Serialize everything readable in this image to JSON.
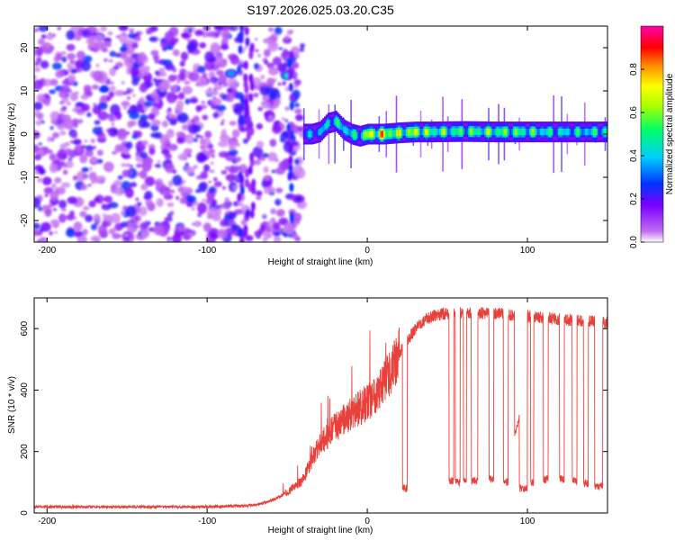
{
  "figure": {
    "title": "S197.2026.025.03.20.C35"
  },
  "chart_data": [
    {
      "type": "heatmap",
      "xlabel": "Height of straight line (km)",
      "ylabel": "Frequency (Hz)",
      "xlim": [
        -208,
        150
      ],
      "ylim": [
        -25,
        25
      ],
      "x_ticks": [
        -200,
        -100,
        0,
        100
      ],
      "y_ticks": [
        -20,
        -10,
        0,
        10,
        20
      ],
      "colorbar": {
        "label": "Normalized spectral amplitude",
        "range": [
          0,
          1
        ],
        "ticks": [
          "0.0",
          "0.2",
          "0.4",
          "0.6",
          "0.8"
        ],
        "colors": [
          "#ffffff",
          "#c26df0",
          "#7a00ff",
          "#0033ff",
          "#00ccff",
          "#00ff66",
          "#aaff00",
          "#ffff00",
          "#ff8800",
          "#ff0000",
          "#ff00aa"
        ]
      },
      "noise_region_x": [
        -208,
        -40
      ],
      "gap_x": [
        -75,
        -70
      ],
      "tone": {
        "x": [
          -40,
          -35,
          -30,
          -25,
          -20,
          -15,
          -10,
          -5,
          0,
          10,
          20,
          30,
          40,
          60,
          80,
          100,
          120,
          150
        ],
        "frequency": [
          0,
          0,
          0.5,
          2.5,
          3,
          1,
          0,
          -0.5,
          0,
          0,
          0.3,
          0.5,
          0.5,
          0.6,
          0.5,
          0.5,
          0.5,
          0.5
        ],
        "amplitude": [
          0.35,
          0.45,
          0.4,
          0.55,
          0.5,
          0.6,
          0.5,
          0.55,
          0.8,
          0.85,
          0.7,
          0.75,
          0.65,
          0.6,
          0.65,
          0.6,
          0.5,
          0.55
        ]
      },
      "blobs": [
        {
          "x": -85,
          "frequency": 14,
          "amplitude": 0.35
        },
        {
          "x": -50,
          "frequency": 13.5,
          "amplitude": 0.45
        },
        {
          "x": -43,
          "frequency": -15,
          "amplitude": 0.2
        }
      ]
    },
    {
      "type": "line",
      "xlabel": "Height of straight line (km)",
      "ylabel": "SNR (10 * v/v)",
      "xlim": [
        -208,
        150
      ],
      "ylim": [
        0,
        700
      ],
      "x_ticks": [
        -200,
        -100,
        0,
        100
      ],
      "y_ticks": [
        0,
        200,
        400,
        600
      ],
      "color": "#e8413b",
      "envelope": {
        "x": [
          -208,
          -150,
          -100,
          -70,
          -60,
          -50,
          -40,
          -35,
          -30,
          -25,
          -20,
          -10,
          0,
          10,
          20,
          30,
          40,
          50,
          60,
          80,
          100,
          120,
          150
        ],
        "y": [
          20,
          20,
          20,
          25,
          40,
          65,
          110,
          170,
          220,
          250,
          280,
          320,
          360,
          420,
          520,
          600,
          640,
          650,
          650,
          650,
          640,
          630,
          620
        ]
      },
      "dropouts": [
        {
          "start": 22,
          "end": 25,
          "level": 80
        },
        {
          "start": 51,
          "end": 54,
          "level": 105
        },
        {
          "start": 55,
          "end": 58,
          "level": 100
        },
        {
          "start": 60,
          "end": 62,
          "level": 110
        },
        {
          "start": 65,
          "end": 69,
          "level": 105
        },
        {
          "start": 76,
          "end": 79,
          "level": 110
        },
        {
          "start": 85,
          "end": 88,
          "level": 100
        },
        {
          "start": 95,
          "end": 100,
          "level": 80
        },
        {
          "start": 102,
          "end": 104,
          "level": 100
        },
        {
          "start": 110,
          "end": 113,
          "level": 110
        },
        {
          "start": 120,
          "end": 123,
          "level": 110
        },
        {
          "start": 128,
          "end": 131,
          "level": 105
        },
        {
          "start": 135,
          "end": 138,
          "level": 95
        },
        {
          "start": 142,
          "end": 145,
          "level": 85
        },
        {
          "start": 145,
          "end": 147,
          "level": 90
        }
      ],
      "ramp_segment": {
        "x": [
          92,
          100
        ],
        "y": [
          250,
          420
        ]
      }
    }
  ]
}
